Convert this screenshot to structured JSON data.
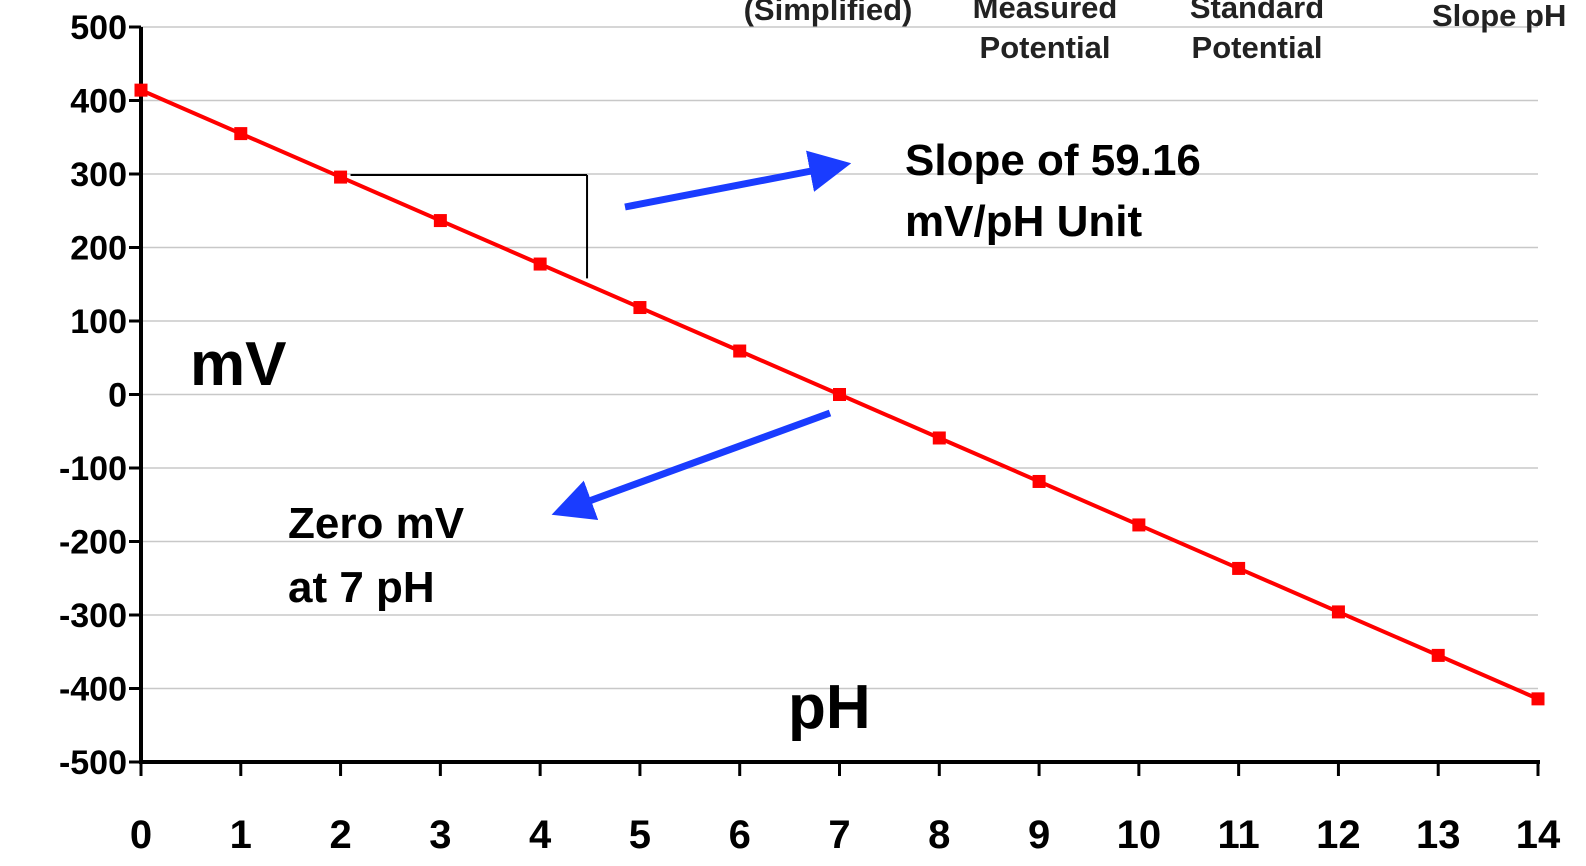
{
  "chart_data": {
    "type": "line",
    "title": "",
    "xlabel": "pH",
    "ylabel": "mV",
    "xlim": [
      0,
      14
    ],
    "ylim": [
      -500,
      500
    ],
    "x_ticks": [
      0,
      1,
      2,
      3,
      4,
      5,
      6,
      7,
      8,
      9,
      10,
      11,
      12,
      13,
      14
    ],
    "y_ticks": [
      500,
      400,
      300,
      200,
      100,
      0,
      -100,
      -200,
      -300,
      -400,
      -500
    ],
    "grid": true,
    "series": [
      {
        "color": "#ff0000",
        "x": [
          0,
          1,
          2,
          3,
          4,
          5,
          6,
          7,
          8,
          9,
          10,
          11,
          12,
          13,
          14
        ],
        "y": [
          414.1,
          354.96,
          295.8,
          236.64,
          177.48,
          118.32,
          59.16,
          0,
          -59.16,
          -118.32,
          -177.48,
          -236.64,
          -295.8,
          -354.96,
          -414.1
        ]
      }
    ],
    "annotations": {
      "slope_line1": "Slope of 59.16",
      "slope_line2": "mV/pH Unit",
      "zero_line1": "Zero mV",
      "zero_line2": "at 7 pH"
    },
    "header_fragments": {
      "simplified": "(Simplified)",
      "measured_line1": "Measured",
      "measured_line2": "Potential",
      "standard_line1": "Standard",
      "standard_line2": "Potential",
      "slope_ph": "Slope pH"
    },
    "colors": {
      "line": "#ff0000",
      "arrow": "#1a3cff",
      "grid": "#c8c8c8",
      "axis": "#000000"
    }
  }
}
